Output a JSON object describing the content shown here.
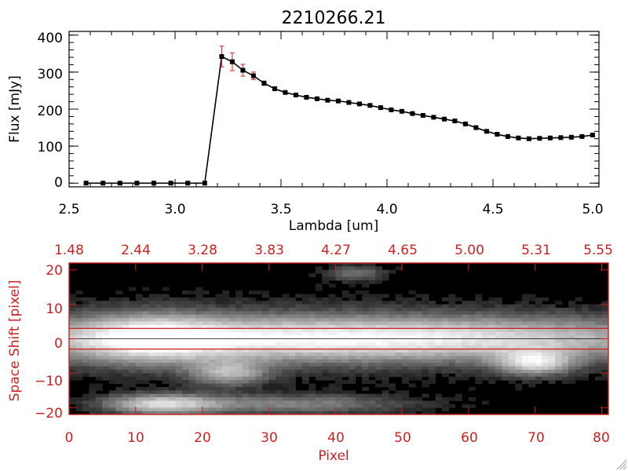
{
  "colors": {
    "axis": "#000000",
    "accent": "#cc2020",
    "marker": "#000000",
    "error_bar": "#cc2020"
  },
  "chart_data": [
    {
      "type": "line",
      "title": "2210266.21",
      "xlabel": "Lambda [um]",
      "ylabel": "Flux [mJy]",
      "xlim": [
        2.5,
        5.0
      ],
      "ylim": [
        -10,
        410
      ],
      "x_ticks": [
        2.5,
        3.0,
        3.5,
        4.0,
        4.5,
        5.0
      ],
      "x_tick_labels": [
        "2.5",
        "3.0",
        "3.5",
        "4.0",
        "4.5",
        "5.0"
      ],
      "y_ticks": [
        0,
        100,
        200,
        300,
        400
      ],
      "y_tick_labels": [
        "0",
        "100",
        "200",
        "300",
        "400"
      ],
      "grid": false,
      "series": [
        {
          "x": [
            2.58,
            2.66,
            2.74,
            2.82,
            2.9,
            2.98,
            3.06,
            3.14,
            3.22,
            3.27,
            3.32,
            3.37,
            3.42,
            3.47,
            3.52,
            3.57,
            3.62,
            3.67,
            3.72,
            3.77,
            3.82,
            3.87,
            3.92,
            3.97,
            4.02,
            4.07,
            4.12,
            4.17,
            4.22,
            4.27,
            4.32,
            4.37,
            4.42,
            4.47,
            4.52,
            4.57,
            4.62,
            4.67,
            4.72,
            4.77,
            4.82,
            4.87,
            4.92,
            4.97
          ],
          "y": [
            0,
            0,
            0,
            0,
            0,
            0,
            0,
            0,
            342,
            328,
            305,
            290,
            270,
            255,
            245,
            238,
            232,
            228,
            224,
            222,
            218,
            214,
            210,
            204,
            198,
            194,
            188,
            183,
            178,
            173,
            168,
            160,
            150,
            140,
            132,
            126,
            122,
            120,
            121,
            122,
            123,
            124,
            126,
            130
          ],
          "yerr": [
            0,
            0,
            0,
            0,
            0,
            0,
            0,
            0,
            28,
            24,
            16,
            10,
            6,
            4,
            3,
            3,
            3,
            3,
            3,
            3,
            3,
            3,
            3,
            3,
            3,
            3,
            3,
            3,
            3,
            3,
            3,
            3,
            3,
            3,
            3,
            3,
            3,
            3,
            3,
            3,
            3,
            3,
            3,
            3
          ]
        }
      ]
    },
    {
      "type": "heatmap",
      "xlabel": "Pixel",
      "ylabel": "Space Shift [pixel]",
      "xlim": [
        0,
        81
      ],
      "ylim": [
        -22,
        22
      ],
      "x_ticks": [
        0,
        10,
        20,
        30,
        40,
        50,
        60,
        70,
        80
      ],
      "x_tick_labels": [
        "0",
        "10",
        "20",
        "30",
        "40",
        "50",
        "60",
        "70",
        "80"
      ],
      "y_ticks": [
        -20,
        -10,
        0,
        10,
        20
      ],
      "y_tick_labels": [
        "−20",
        "−10",
        "0",
        "10",
        "20"
      ],
      "top_tick_labels": [
        "1.48",
        "2.44",
        "3.28",
        "3.83",
        "4.27",
        "4.65",
        "5.00",
        "5.31",
        "5.55"
      ],
      "extraction_window": [
        -3,
        3
      ],
      "colormap": "grayscale",
      "sources": [
        {
          "x": 42,
          "y": 0,
          "sx": 40,
          "sy": 4.5,
          "amp": 0.9
        },
        {
          "x": 12,
          "y": 0,
          "sx": 7,
          "sy": 5,
          "amp": 0.5
        },
        {
          "x": 24,
          "y": -10,
          "sx": 4,
          "sy": 2.5,
          "amp": 0.55
        },
        {
          "x": 14,
          "y": -19,
          "sx": 6,
          "sy": 2,
          "amp": 0.75
        },
        {
          "x": 34,
          "y": -19,
          "sx": 12,
          "sy": 2,
          "amp": 0.4
        },
        {
          "x": 70,
          "y": -7,
          "sx": 4,
          "sy": 2.5,
          "amp": 0.7
        },
        {
          "x": 43,
          "y": 19,
          "sx": 3,
          "sy": 1.5,
          "amp": 0.35
        }
      ]
    }
  ]
}
